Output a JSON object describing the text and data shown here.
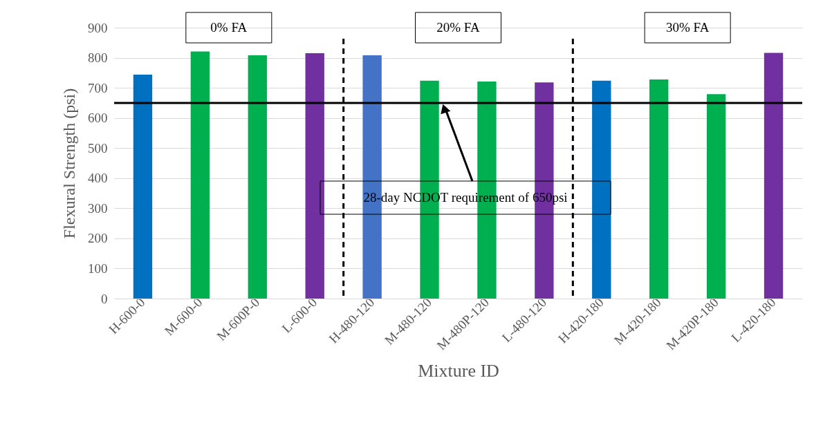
{
  "chart_data": {
    "type": "bar",
    "xlabel": "Mixture ID",
    "ylabel": "Flexural Strength (psi)",
    "categories": [
      "H-600-0",
      "M-600-0",
      "M-600P-0",
      "L-600-0",
      "H-480-120",
      "M-480-120",
      "M-480P-120",
      "L-480-120",
      "H-420-180",
      "M-420-180",
      "M-420P-180",
      "L-420-180"
    ],
    "values": [
      744,
      821,
      808,
      815,
      808,
      724,
      721,
      718,
      724,
      728,
      679,
      816
    ],
    "colors": [
      "#0070c0",
      "#00b050",
      "#00b050",
      "#7030a0",
      "#4472c4",
      "#00b050",
      "#00b050",
      "#7030a0",
      "#0070c0",
      "#00b050",
      "#00b050",
      "#7030a0"
    ],
    "ylim": [
      0,
      900
    ],
    "yticks": [
      0,
      100,
      200,
      300,
      400,
      500,
      600,
      700,
      800,
      900
    ],
    "grid": "y",
    "ref_lines": [
      {
        "axis": "y",
        "value": 650,
        "label": "28-day NCDOT requirement of 650psi",
        "color": "#000000",
        "line_style": "solid"
      }
    ],
    "annotations": [
      "0% FA",
      "20% FA",
      "30% FA"
    ]
  }
}
